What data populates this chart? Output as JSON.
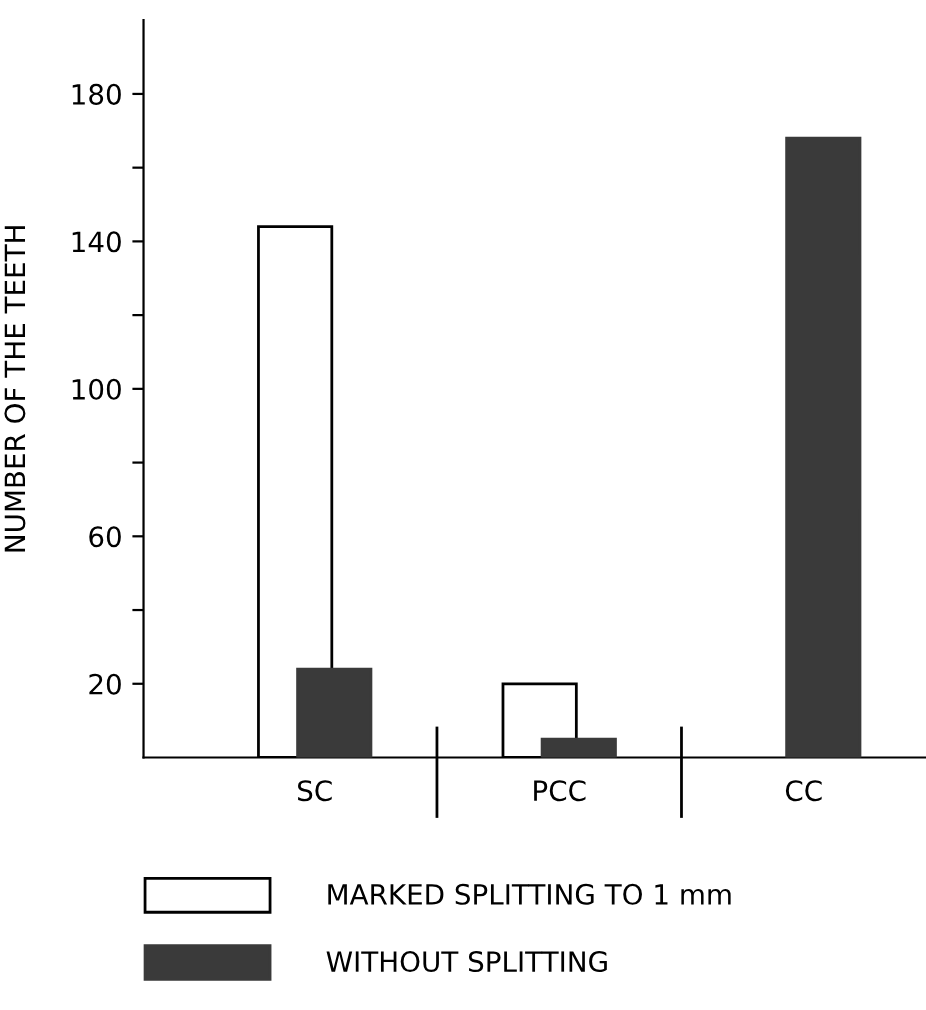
{
  "chart_data": {
    "type": "bar",
    "ylabel": "NUMBER OF THE TEETH",
    "categories": [
      "SC",
      "PCC",
      "CC"
    ],
    "series": [
      {
        "name": "MARKED SPLITTING TO 1 mm",
        "color": "#ffffff",
        "values": [
          144,
          20,
          null
        ]
      },
      {
        "name": "WITHOUT SPLITTING",
        "color": "#3a3a3a",
        "values": [
          24,
          5,
          168
        ]
      }
    ],
    "ylim": [
      0,
      200
    ],
    "yticks": [
      20,
      {
        "value": 40,
        "label": null
      },
      60,
      {
        "value": 80,
        "label": null
      },
      100,
      {
        "value": 120,
        "label": null
      },
      140,
      {
        "value": 160,
        "label": null
      },
      180
    ],
    "grid": false,
    "legend": "bottom"
  }
}
